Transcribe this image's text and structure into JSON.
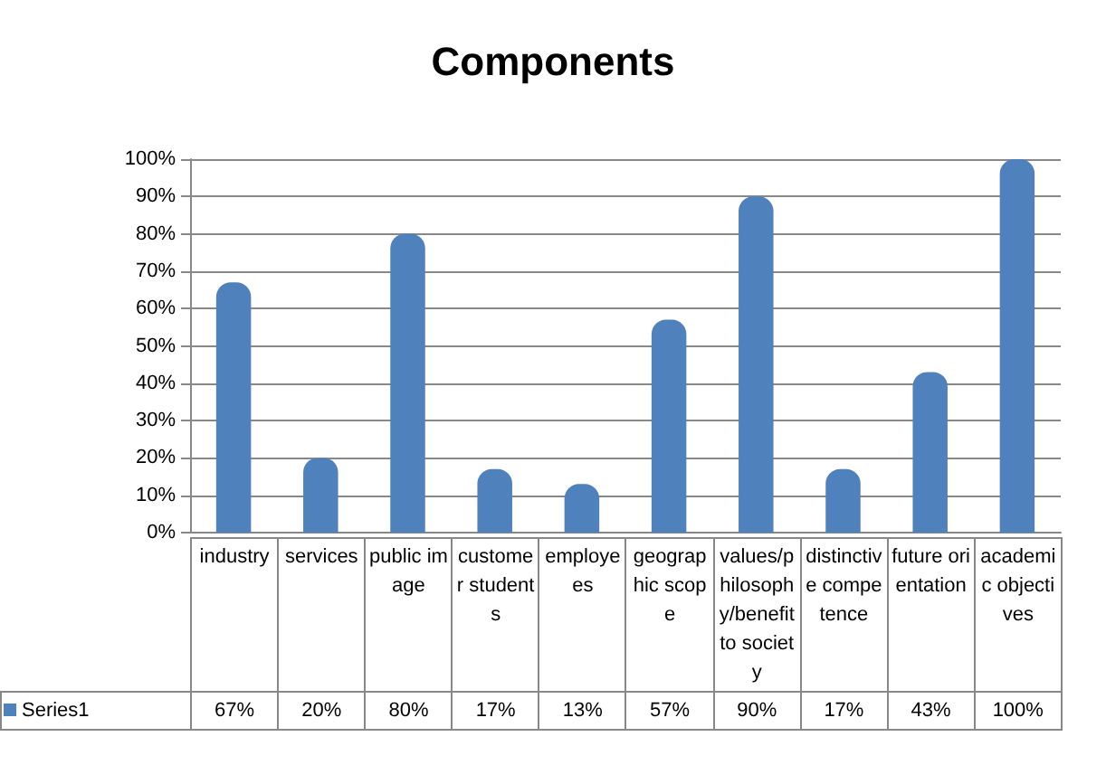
{
  "chart_data": {
    "type": "bar",
    "title": "Components",
    "categories": [
      "industry",
      "services",
      "public image",
      "customer students",
      "employees",
      "geographic scope",
      "values/philosophy/benefit to society",
      "distinctive competence",
      "future orientation",
      "academic objectives"
    ],
    "series": [
      {
        "name": "Series1",
        "color": "#4f81bd",
        "values": [
          67,
          20,
          80,
          17,
          13,
          57,
          90,
          17,
          43,
          100
        ],
        "value_labels": [
          "67%",
          "20%",
          "80%",
          "17%",
          "13%",
          "57%",
          "90%",
          "17%",
          "43%",
          "100%"
        ]
      }
    ],
    "ylim": [
      0,
      100
    ],
    "yticks": [
      {
        "value": 0,
        "label": "0%"
      },
      {
        "value": 10,
        "label": "10%"
      },
      {
        "value": 20,
        "label": "20%"
      },
      {
        "value": 30,
        "label": "30%"
      },
      {
        "value": 40,
        "label": "40%"
      },
      {
        "value": 50,
        "label": "50%"
      },
      {
        "value": 60,
        "label": "60%"
      },
      {
        "value": 70,
        "label": "70%"
      },
      {
        "value": 80,
        "label": "80%"
      },
      {
        "value": 90,
        "label": "90%"
      },
      {
        "value": 100,
        "label": "100%"
      }
    ],
    "grid": "y"
  }
}
